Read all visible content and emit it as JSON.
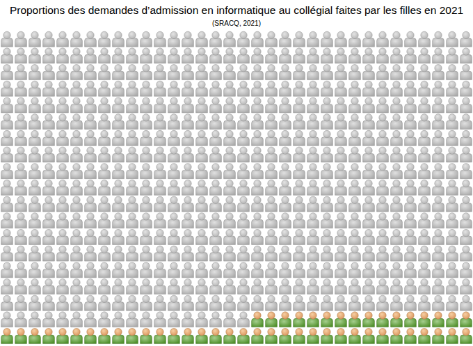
{
  "chart_data": {
    "type": "pictogram",
    "title": "Proportions des demandes d’admission en informatique au collégial faites par les filles en 2021",
    "subtitle": "(SRACQ, 2021)",
    "categories": [
      null,
      null
    ],
    "values": [
      596,
      50
    ],
    "colors": [
      "#c9c9c9",
      "#5ea832"
    ]
  }
}
